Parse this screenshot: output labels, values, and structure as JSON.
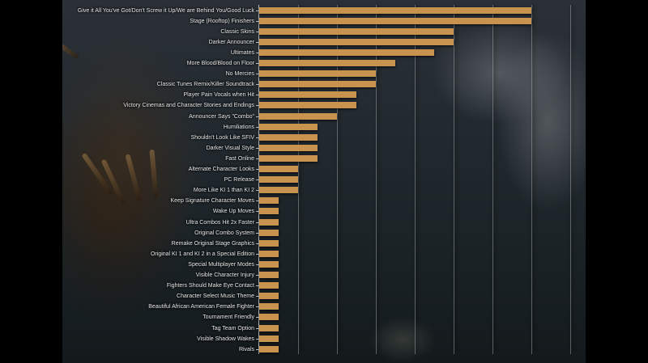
{
  "chart_data": {
    "type": "bar",
    "orientation": "horizontal",
    "title": "",
    "xlabel": "",
    "ylabel": "",
    "xlim": [
      0,
      16
    ],
    "grid": true,
    "legend": "none",
    "bar_color": "#c8924f",
    "categories": [
      "Give it All You've Got/Don't Screw it Up/We are Behind You/Good Luck",
      "Stage (Rooftop) Finishers",
      "Classic Skins",
      "Darker Announcer",
      "Ultimates",
      "More Blood/Blood on Floor",
      "No Mercies",
      "Classic Tunes Remix/Killer Soundtrack",
      "Player Pain Vocals when Hit",
      "Victory Cinemas and Character Stories and Endings",
      "Announcer Says \"Combo\"",
      "Humiliations",
      "Shouldn't Look Like SFIV",
      "Darker Visual Style",
      "Fast Online",
      "Alternate Character Looks",
      "PC Release",
      "More Like KI 1 than KI 2",
      "Keep Signature Character Moves",
      "Wake Up Moves",
      "Ultra Combos Hit 2x Faster",
      "Original Combo System",
      "Remake Original Stage Graphics",
      "Original KI 1 and KI 2 in a Special Edition",
      "Special Multiplayer Modes",
      "Visible Character Injury",
      "Fighters Should Make Eye Contact",
      "Character Select Music Theme",
      "Beautiful African American Female Fighter",
      "Tournament Friendly",
      "Tag Team Option",
      "Visible Shadow Wakes",
      "Rivals"
    ],
    "values": [
      14,
      14,
      10,
      10,
      9,
      7,
      6,
      6,
      5,
      5,
      4,
      3,
      3,
      3,
      3,
      2,
      2,
      2,
      1,
      1,
      1,
      1,
      1,
      1,
      1,
      1,
      1,
      1,
      1,
      1,
      1,
      1,
      1
    ]
  }
}
